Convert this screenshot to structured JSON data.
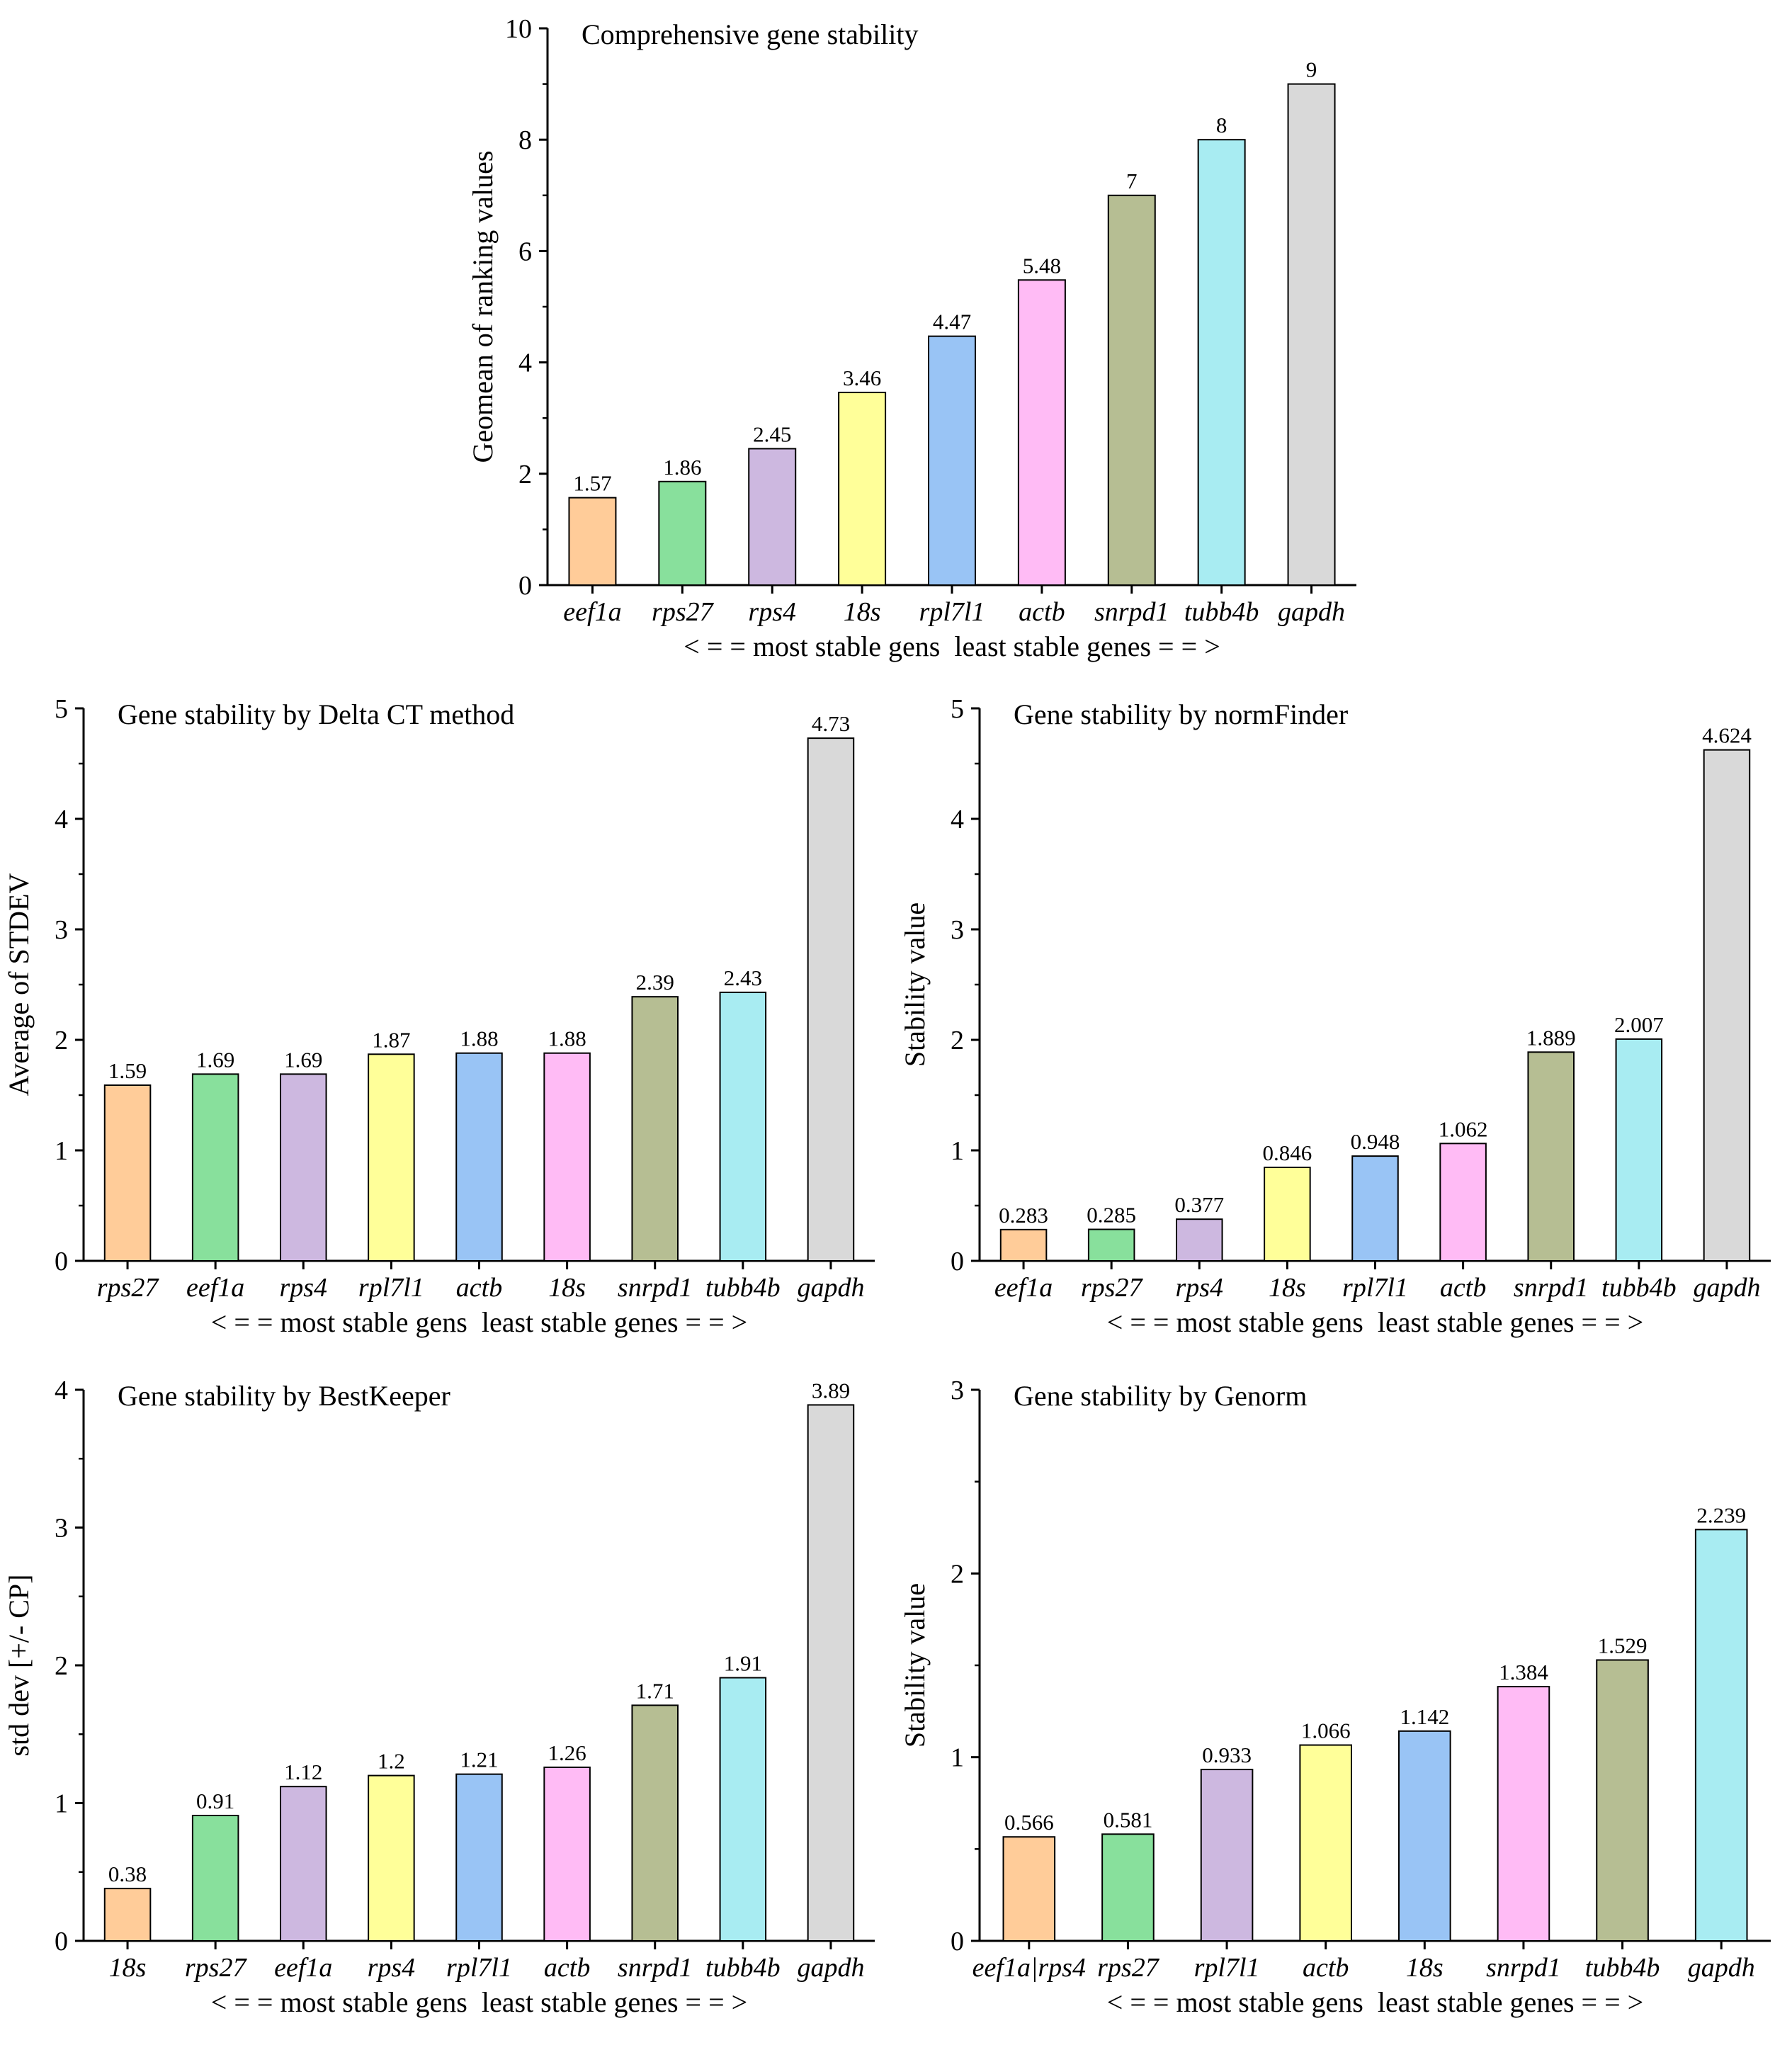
{
  "colors": {
    "bar_palette": [
      "#ffcc99",
      "#88e09c",
      "#cdb8e0",
      "#ffff99",
      "#99c4f5",
      "#ffbbf5",
      "#b6be93",
      "#a8ecf2",
      "#d9d9d9"
    ],
    "axis": "#000000",
    "bar_stroke": "#000000"
  },
  "chart_data": [
    {
      "id": "comprehensive",
      "type": "bar",
      "title": "Comprehensive gene stability",
      "ylabel": "Geomean of ranking values",
      "xlabel": "< = = most stable gens  least stable genes = = >",
      "categories": [
        "eef1a",
        "rps27",
        "rps4",
        "18s",
        "rpl7l1",
        "actb",
        "snrpd1",
        "tubb4b",
        "gapdh"
      ],
      "values": [
        1.57,
        1.86,
        2.45,
        3.46,
        4.47,
        5.48,
        7,
        8,
        9
      ],
      "labels": [
        "1.57",
        "1.86",
        "2.45",
        "3.46",
        "4.47",
        "5.48",
        "7",
        "8",
        "9"
      ],
      "colorIndex": [
        0,
        1,
        2,
        3,
        4,
        5,
        6,
        7,
        8
      ],
      "ylim": [
        0,
        10
      ],
      "yticks": [
        0,
        2,
        4,
        6,
        8,
        10
      ],
      "grid": false
    },
    {
      "id": "deltact",
      "type": "bar",
      "title": "Gene stability by Delta CT method",
      "ylabel": "Average of STDEV",
      "xlabel": "< = = most stable gens  least stable genes = = >",
      "categories": [
        "rps27",
        "eef1a",
        "rps4",
        "rpl7l1",
        "actb",
        "18s",
        "snrpd1",
        "tubb4b",
        "gapdh"
      ],
      "values": [
        1.59,
        1.69,
        1.69,
        1.87,
        1.88,
        1.88,
        2.39,
        2.43,
        4.73
      ],
      "labels": [
        "1.59",
        "1.69",
        "1.69",
        "1.87",
        "1.88",
        "1.88",
        "2.39",
        "2.43",
        "4.73"
      ],
      "colorIndex": [
        0,
        1,
        2,
        3,
        4,
        5,
        6,
        7,
        8
      ],
      "ylim": [
        0,
        5
      ],
      "yticks": [
        0,
        1,
        2,
        3,
        4,
        5
      ],
      "grid": false
    },
    {
      "id": "normfinder",
      "type": "bar",
      "title": "Gene stability by normFinder",
      "ylabel": "Stability value",
      "xlabel": "< = = most stable gens  least stable genes = = >",
      "categories": [
        "eef1a",
        "rps27",
        "rps4",
        "18s",
        "rpl7l1",
        "actb",
        "snrpd1",
        "tubb4b",
        "gapdh"
      ],
      "values": [
        0.283,
        0.285,
        0.377,
        0.846,
        0.948,
        1.062,
        1.889,
        2.007,
        4.624
      ],
      "labels": [
        "0.283",
        "0.285",
        "0.377",
        "0.846",
        "0.948",
        "1.062",
        "1.889",
        "2.007",
        "4.624"
      ],
      "colorIndex": [
        0,
        1,
        2,
        3,
        4,
        5,
        6,
        7,
        8
      ],
      "ylim": [
        0,
        5
      ],
      "yticks": [
        0,
        1,
        2,
        3,
        4,
        5
      ],
      "grid": false
    },
    {
      "id": "bestkeeper",
      "type": "bar",
      "title": "Gene stability by BestKeeper",
      "ylabel": "std dev [+/- CP]",
      "xlabel": "< = = most stable gens  least stable genes = = >",
      "categories": [
        "18s",
        "rps27",
        "eef1a",
        "rps4",
        "rpl7l1",
        "actb",
        "snrpd1",
        "tubb4b",
        "gapdh"
      ],
      "values": [
        0.38,
        0.91,
        1.12,
        1.2,
        1.21,
        1.26,
        1.71,
        1.91,
        3.89
      ],
      "labels": [
        "0.38",
        "0.91",
        "1.12",
        "1.2",
        "1.21",
        "1.26",
        "1.71",
        "1.91",
        "3.89"
      ],
      "colorIndex": [
        0,
        1,
        2,
        3,
        4,
        5,
        6,
        7,
        8
      ],
      "ylim": [
        0,
        4
      ],
      "yticks": [
        0,
        1,
        2,
        3,
        4
      ],
      "grid": false
    },
    {
      "id": "genorm",
      "type": "bar",
      "title": "Gene stability by Genorm",
      "ylabel": "Stability value",
      "xlabel": "< = = most stable gens  least stable genes = = >",
      "categories": [
        "eef1a|rps4",
        "rps27",
        "rpl7l1",
        "actb",
        "18s",
        "snrpd1",
        "tubb4b",
        "gapdh"
      ],
      "values": [
        0.566,
        0.581,
        0.933,
        1.066,
        1.142,
        1.384,
        1.529,
        2.239
      ],
      "labels": [
        "0.566",
        "0.581",
        "0.933",
        "1.066",
        "1.142",
        "1.384",
        "1.529",
        "2.239"
      ],
      "colorIndex": [
        0,
        1,
        2,
        3,
        4,
        5,
        6,
        7
      ],
      "ylim": [
        0,
        3
      ],
      "yticks": [
        0,
        1,
        2,
        3
      ],
      "grid": false
    }
  ]
}
